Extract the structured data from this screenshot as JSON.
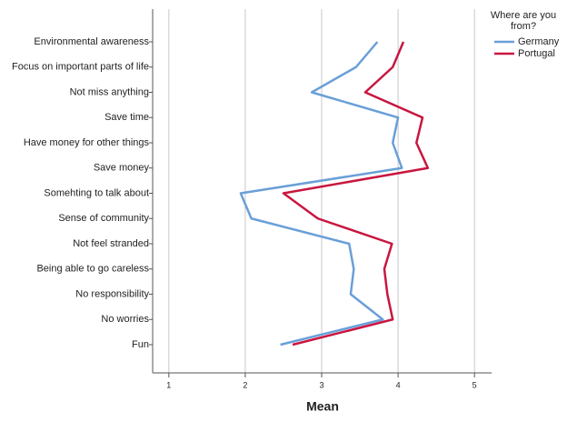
{
  "chart_data": {
    "type": "line",
    "orientation": "horizontal",
    "x_label": "Mean",
    "legend_title": "Where are you from?",
    "legend_position": "top-right",
    "categories": [
      "Environmental awareness",
      "Focus on important parts of life",
      "Not miss anything",
      "Save time",
      "Have money for other things",
      "Save money",
      "Somehting to talk about",
      "Sense of community",
      "Not feel stranded",
      "Being able to go careless",
      "No responsibility",
      "No worries",
      "Fun"
    ],
    "series": [
      {
        "name": "Germany",
        "color": "#6a9fd8",
        "values": [
          3.73,
          3.45,
          2.87,
          4.0,
          3.93,
          4.05,
          1.94,
          2.08,
          3.36,
          3.42,
          3.38,
          3.8,
          2.46
        ]
      },
      {
        "name": "Portugal",
        "color": "#c8163f",
        "values": [
          4.07,
          3.93,
          3.57,
          4.32,
          4.24,
          4.39,
          2.5,
          2.95,
          3.92,
          3.82,
          3.86,
          3.93,
          2.62
        ]
      }
    ],
    "xlim": [
      0.8,
      5.2
    ],
    "xticks": [
      1,
      2,
      3,
      4,
      5
    ],
    "grid": true
  }
}
